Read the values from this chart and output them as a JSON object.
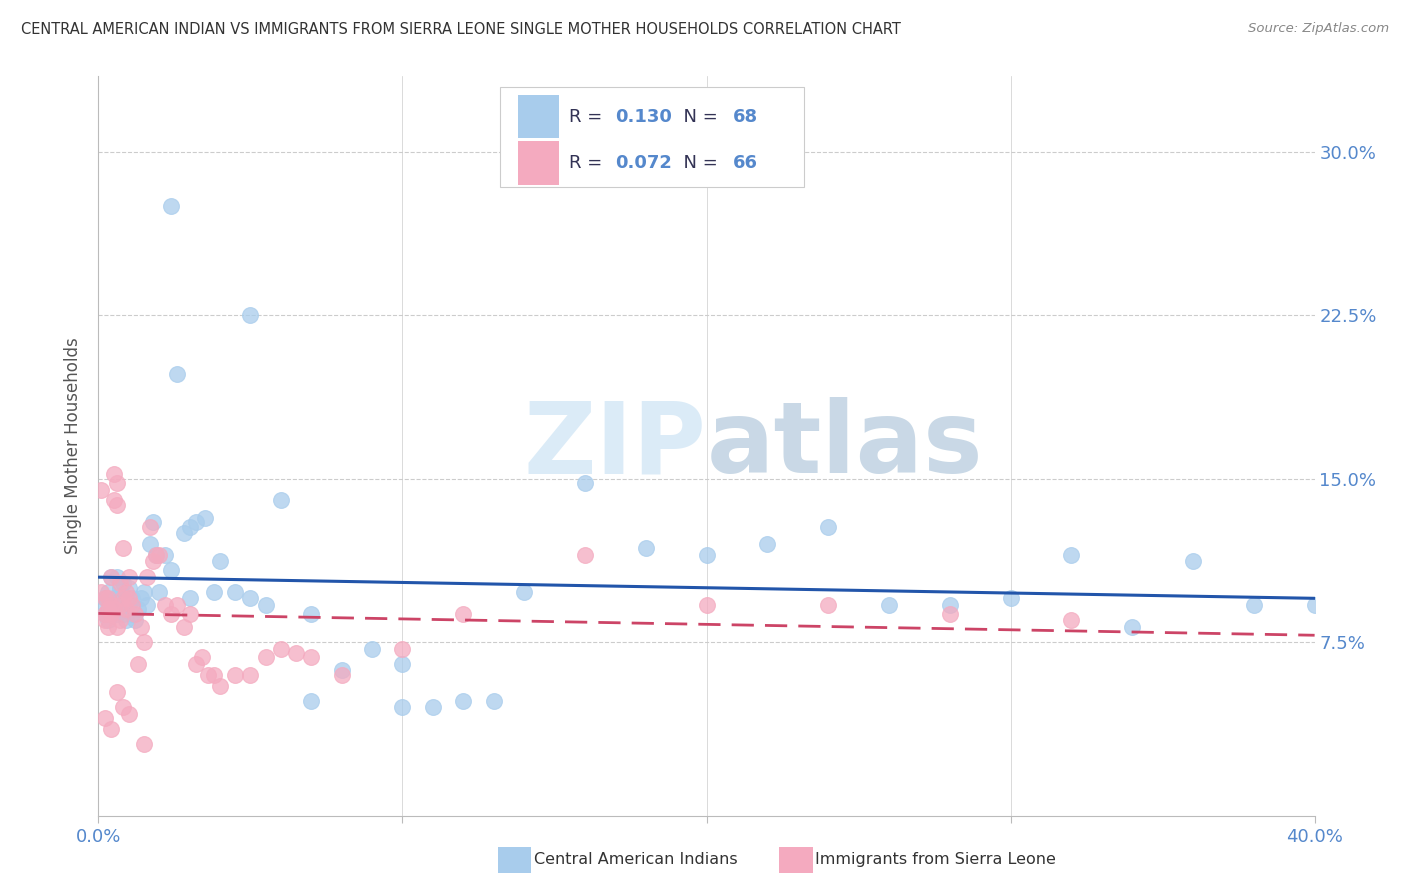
{
  "title": "CENTRAL AMERICAN INDIAN VS IMMIGRANTS FROM SIERRA LEONE SINGLE MOTHER HOUSEHOLDS CORRELATION CHART",
  "source": "Source: ZipAtlas.com",
  "ylabel": "Single Mother Households",
  "ytick_labels": [
    "7.5%",
    "15.0%",
    "22.5%",
    "30.0%"
  ],
  "ytick_values": [
    0.075,
    0.15,
    0.225,
    0.3
  ],
  "xlim": [
    0.0,
    0.4
  ],
  "ylim": [
    -0.005,
    0.335
  ],
  "legend_r1": "0.130",
  "legend_n1": "68",
  "legend_r2": "0.072",
  "legend_n2": "66",
  "color_blue": "#a8ccec",
  "color_pink": "#f4aabf",
  "color_blue_dark": "#2255aa",
  "color_pink_dark": "#cc4466",
  "color_axis_label": "#5588cc",
  "color_title": "#333333",
  "color_source": "#888888",
  "color_grid": "#cccccc",
  "color_text_dark": "#333355",
  "watermark_color": "#d0e8f8",
  "blue_points_x": [
    0.001,
    0.002,
    0.002,
    0.003,
    0.003,
    0.004,
    0.005,
    0.005,
    0.006,
    0.006,
    0.007,
    0.007,
    0.008,
    0.008,
    0.009,
    0.009,
    0.01,
    0.01,
    0.011,
    0.011,
    0.012,
    0.013,
    0.014,
    0.015,
    0.016,
    0.017,
    0.018,
    0.019,
    0.02,
    0.022,
    0.024,
    0.026,
    0.028,
    0.03,
    0.032,
    0.035,
    0.038,
    0.04,
    0.045,
    0.05,
    0.055,
    0.06,
    0.07,
    0.08,
    0.09,
    0.1,
    0.11,
    0.12,
    0.14,
    0.16,
    0.18,
    0.2,
    0.22,
    0.24,
    0.26,
    0.28,
    0.3,
    0.32,
    0.34,
    0.36,
    0.38,
    0.4,
    0.024,
    0.03,
    0.05,
    0.07,
    0.1,
    0.13
  ],
  "blue_points_y": [
    0.092,
    0.088,
    0.095,
    0.085,
    0.098,
    0.105,
    0.09,
    0.095,
    0.088,
    0.105,
    0.095,
    0.1,
    0.088,
    0.102,
    0.085,
    0.095,
    0.092,
    0.1,
    0.088,
    0.095,
    0.085,
    0.09,
    0.095,
    0.098,
    0.092,
    0.12,
    0.13,
    0.115,
    0.098,
    0.115,
    0.275,
    0.198,
    0.125,
    0.128,
    0.13,
    0.132,
    0.098,
    0.112,
    0.098,
    0.225,
    0.092,
    0.14,
    0.088,
    0.062,
    0.072,
    0.065,
    0.045,
    0.048,
    0.098,
    0.148,
    0.118,
    0.115,
    0.12,
    0.128,
    0.092,
    0.092,
    0.095,
    0.115,
    0.082,
    0.112,
    0.092,
    0.092,
    0.108,
    0.095,
    0.095,
    0.048,
    0.045,
    0.048
  ],
  "pink_points_x": [
    0.001,
    0.001,
    0.002,
    0.002,
    0.002,
    0.003,
    0.003,
    0.003,
    0.004,
    0.004,
    0.004,
    0.005,
    0.005,
    0.005,
    0.006,
    0.006,
    0.006,
    0.007,
    0.007,
    0.007,
    0.008,
    0.008,
    0.009,
    0.009,
    0.01,
    0.01,
    0.011,
    0.012,
    0.013,
    0.014,
    0.015,
    0.016,
    0.017,
    0.018,
    0.019,
    0.02,
    0.022,
    0.024,
    0.026,
    0.028,
    0.03,
    0.032,
    0.034,
    0.036,
    0.038,
    0.04,
    0.045,
    0.05,
    0.055,
    0.06,
    0.065,
    0.07,
    0.08,
    0.1,
    0.12,
    0.16,
    0.2,
    0.24,
    0.28,
    0.32,
    0.002,
    0.004,
    0.006,
    0.008,
    0.01,
    0.015
  ],
  "pink_points_y": [
    0.098,
    0.145,
    0.088,
    0.095,
    0.085,
    0.082,
    0.09,
    0.095,
    0.088,
    0.092,
    0.105,
    0.14,
    0.152,
    0.09,
    0.138,
    0.148,
    0.082,
    0.085,
    0.092,
    0.102,
    0.095,
    0.118,
    0.09,
    0.098,
    0.105,
    0.095,
    0.092,
    0.088,
    0.065,
    0.082,
    0.075,
    0.105,
    0.128,
    0.112,
    0.115,
    0.115,
    0.092,
    0.088,
    0.092,
    0.082,
    0.088,
    0.065,
    0.068,
    0.06,
    0.06,
    0.055,
    0.06,
    0.06,
    0.068,
    0.072,
    0.07,
    0.068,
    0.06,
    0.072,
    0.088,
    0.115,
    0.092,
    0.092,
    0.088,
    0.085,
    0.04,
    0.035,
    0.052,
    0.045,
    0.042,
    0.028
  ]
}
